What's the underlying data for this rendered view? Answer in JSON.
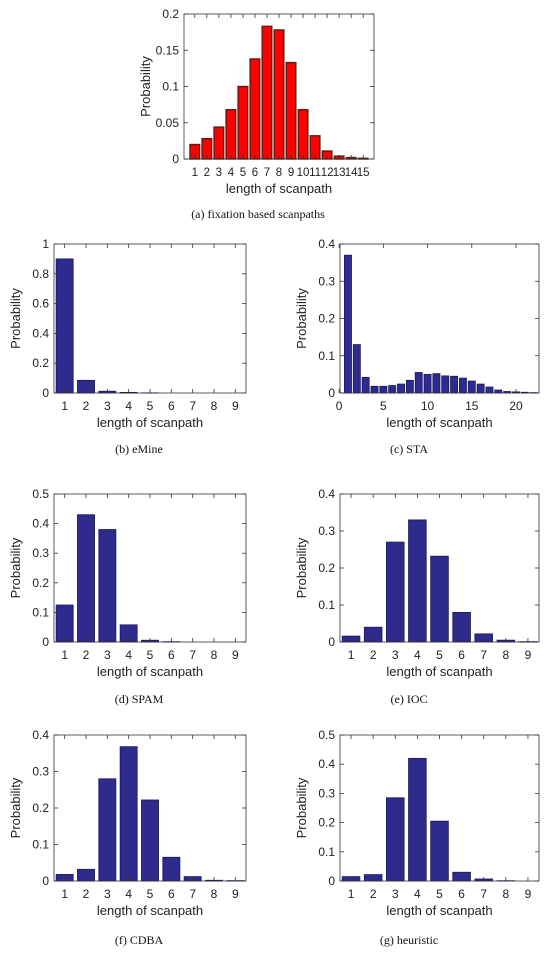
{
  "chart_data": [
    {
      "id": "a",
      "type": "bar",
      "caption": "(a) fixation based scanpaths",
      "xlabel": "length of scanpath",
      "ylabel": "Probability",
      "categories": [
        "1",
        "2",
        "3",
        "4",
        "5",
        "6",
        "7",
        "8",
        "9",
        "10",
        "11",
        "12",
        "13",
        "14",
        "15"
      ],
      "values": [
        0.02,
        0.028,
        0.044,
        0.068,
        0.1,
        0.138,
        0.183,
        0.178,
        0.133,
        0.068,
        0.032,
        0.011,
        0.004,
        0.002,
        0.001
      ],
      "ylim": [
        0,
        0.2
      ],
      "yticks": [
        "0",
        "0.05",
        "0.1",
        "0.15",
        "0.2"
      ],
      "xticks": [
        "1",
        "2",
        "3",
        "4",
        "5",
        "6",
        "7",
        "8",
        "9",
        "10",
        "11",
        "12",
        "13",
        "14",
        "15"
      ],
      "bar_color": "#ff0000",
      "bar_edge": "#5a1e12"
    },
    {
      "id": "b",
      "type": "bar",
      "caption": "(b) eMine",
      "xlabel": "length of scanpath",
      "ylabel": "Probability",
      "categories": [
        "1",
        "2",
        "3",
        "4",
        "5",
        "6",
        "7",
        "8",
        "9"
      ],
      "values": [
        0.9,
        0.085,
        0.012,
        0.004,
        0.001,
        0,
        0,
        0,
        0
      ],
      "ylim": [
        0,
        1
      ],
      "yticks": [
        "0",
        "0.2",
        "0.4",
        "0.6",
        "0.8",
        "1"
      ],
      "xticks": [
        "1",
        "2",
        "3",
        "4",
        "5",
        "6",
        "7",
        "8",
        "9"
      ],
      "bar_color": "#2e2b8c",
      "bar_edge": "#1a1860"
    },
    {
      "id": "c",
      "type": "bar",
      "caption": "(c) STA",
      "xlabel": "length of scanpath",
      "ylabel": "Probability",
      "categories": [
        "1",
        "2",
        "3",
        "4",
        "5",
        "6",
        "7",
        "8",
        "9",
        "10",
        "11",
        "12",
        "13",
        "14",
        "15",
        "16",
        "17",
        "18",
        "19",
        "20",
        "21",
        "22"
      ],
      "values": [
        0.37,
        0.13,
        0.042,
        0.018,
        0.018,
        0.02,
        0.024,
        0.034,
        0.055,
        0.05,
        0.052,
        0.046,
        0.045,
        0.04,
        0.032,
        0.024,
        0.016,
        0.008,
        0.004,
        0.003,
        0.002,
        0.001
      ],
      "ylim": [
        0,
        0.4
      ],
      "yticks": [
        "0",
        "0.1",
        "0.2",
        "0.3",
        "0.4"
      ],
      "xticks": [
        "0",
        "5",
        "10",
        "15",
        "20"
      ],
      "bar_color": "#2e2b8c",
      "bar_edge": "#1a1860"
    },
    {
      "id": "d",
      "type": "bar",
      "caption": "(d) SPAM",
      "xlabel": "length of scanpath",
      "ylabel": "Probability",
      "categories": [
        "1",
        "2",
        "3",
        "4",
        "5",
        "6",
        "7",
        "8",
        "9"
      ],
      "values": [
        0.125,
        0.43,
        0.38,
        0.058,
        0.006,
        0.001,
        0,
        0,
        0
      ],
      "ylim": [
        0,
        0.5
      ],
      "yticks": [
        "0",
        "0.1",
        "0.2",
        "0.3",
        "0.4",
        "0.5"
      ],
      "xticks": [
        "1",
        "2",
        "3",
        "4",
        "5",
        "6",
        "7",
        "8",
        "9"
      ],
      "bar_color": "#2e2b8c",
      "bar_edge": "#1a1860"
    },
    {
      "id": "e",
      "type": "bar",
      "caption": "(e) IOC",
      "xlabel": "length of scanpath",
      "ylabel": "Probability",
      "categories": [
        "1",
        "2",
        "3",
        "4",
        "5",
        "6",
        "7",
        "8",
        "9"
      ],
      "values": [
        0.016,
        0.04,
        0.27,
        0.33,
        0.232,
        0.08,
        0.022,
        0.005,
        0.001
      ],
      "ylim": [
        0,
        0.4
      ],
      "yticks": [
        "0",
        "0.1",
        "0.2",
        "0.3",
        "0.4"
      ],
      "xticks": [
        "1",
        "2",
        "3",
        "4",
        "5",
        "6",
        "7",
        "8",
        "9"
      ],
      "bar_color": "#2e2b8c",
      "bar_edge": "#1a1860"
    },
    {
      "id": "f",
      "type": "bar",
      "caption": "(f) CDBA",
      "xlabel": "length of scanpath",
      "ylabel": "Probability",
      "categories": [
        "1",
        "2",
        "3",
        "4",
        "5",
        "6",
        "7",
        "8",
        "9"
      ],
      "values": [
        0.018,
        0.032,
        0.28,
        0.368,
        0.222,
        0.065,
        0.012,
        0.002,
        0.001
      ],
      "ylim": [
        0,
        0.4
      ],
      "yticks": [
        "0",
        "0.1",
        "0.2",
        "0.3",
        "0.4"
      ],
      "xticks": [
        "1",
        "2",
        "3",
        "4",
        "5",
        "6",
        "7",
        "8",
        "9"
      ],
      "bar_color": "#2e2b8c",
      "bar_edge": "#1a1860"
    },
    {
      "id": "g",
      "type": "bar",
      "caption": "(g) heuristic",
      "xlabel": "length of scanpath",
      "ylabel": "Probability",
      "categories": [
        "1",
        "2",
        "3",
        "4",
        "5",
        "6",
        "7",
        "8",
        "9"
      ],
      "values": [
        0.015,
        0.022,
        0.285,
        0.42,
        0.205,
        0.03,
        0.007,
        0.001,
        0
      ],
      "ylim": [
        0,
        0.5
      ],
      "yticks": [
        "0",
        "0.1",
        "0.2",
        "0.3",
        "0.4",
        "0.5"
      ],
      "xticks": [
        "1",
        "2",
        "3",
        "4",
        "5",
        "6",
        "7",
        "8",
        "9"
      ],
      "bar_color": "#2e2b8c",
      "bar_edge": "#1a1860"
    }
  ]
}
